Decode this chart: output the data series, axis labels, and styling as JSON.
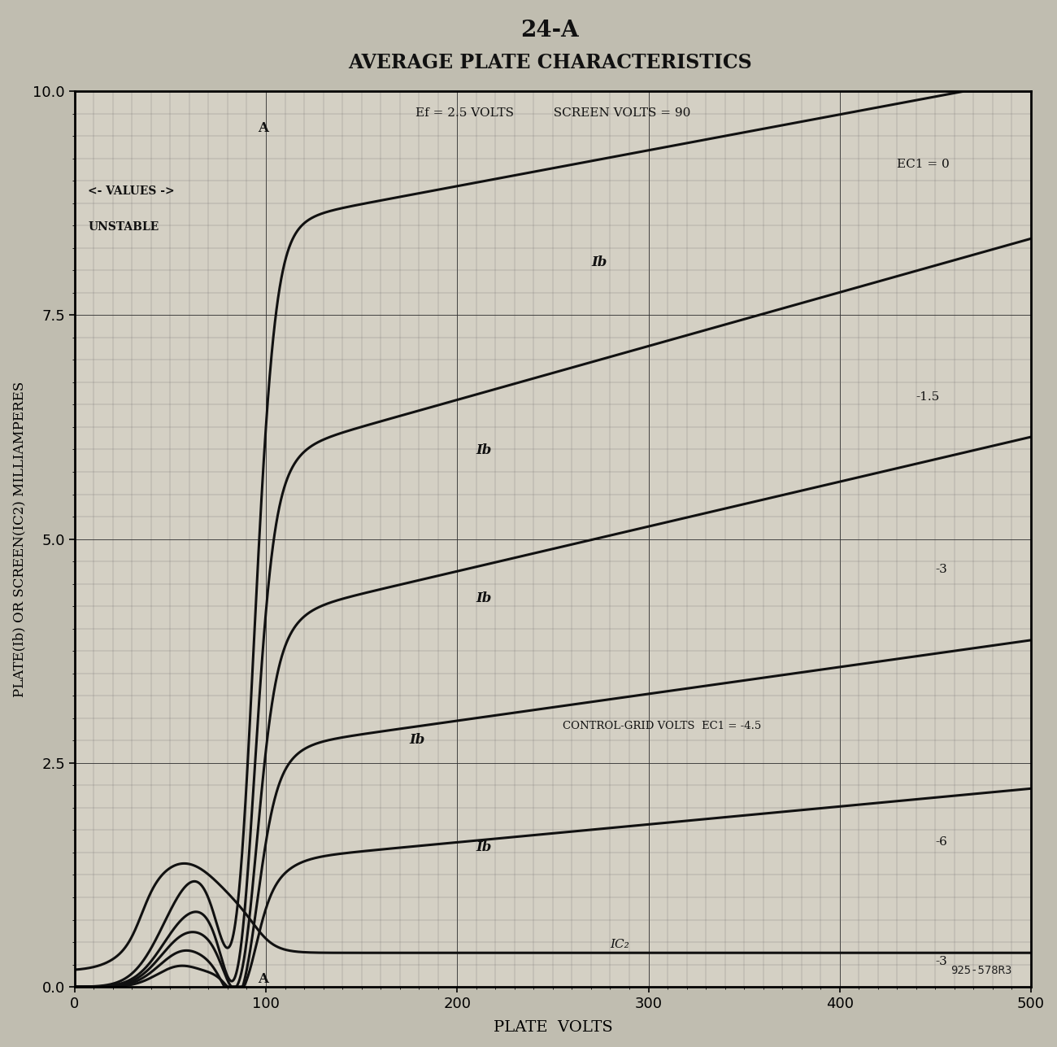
{
  "title_top": "24-A",
  "title_main": "AVERAGE PLATE CHARACTERISTICS",
  "subtitle_inside": "Ef = 2.5 VOLTS          SCREEN VOLTS = 90",
  "xlabel": "PLATE  VOLTS",
  "ylabel": "PLATE(Ib) OR SCREEN(IC2) MILLIAMPERES",
  "xlim": [
    0,
    500
  ],
  "ylim": [
    0,
    10.0
  ],
  "yticks": [
    0.0,
    2.5,
    5.0,
    7.5,
    10.0
  ],
  "xticks": [
    0,
    100,
    200,
    300,
    400,
    500
  ],
  "bg_color": "#d4d0c4",
  "curve_color": "#111111",
  "watermark": "925-578R3",
  "fig_bg": "#c0bdb0",
  "label_ec0": "EC1 = 0",
  "label_ec1p5": "-1.5",
  "label_ec3": "-3",
  "label_ec4p5": "CONTROL-GRID VOLTS  EC1 = -4.5",
  "label_ec6": "-6",
  "label_ic2": "IC2",
  "label_ic2_neg3": "-3",
  "unstable_text_1": "<- VALUES ->",
  "unstable_text_2": "UNSTABLE"
}
